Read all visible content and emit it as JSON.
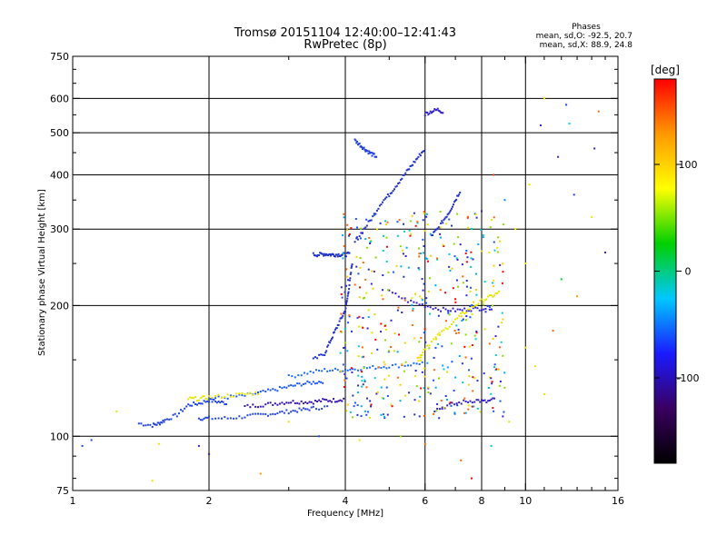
{
  "chart_data": {
    "type": "scatter",
    "title": "Tromsø 20151104 12:40:00–12:41:43",
    "subtitle": "RwPretec (8p)",
    "xlabel": "Frequency [MHz]",
    "ylabel": "Stationary phase Virtual Height [km]",
    "x_scale": "log",
    "y_scale": "log",
    "xlim": [
      1,
      16
    ],
    "ylim": [
      75,
      750
    ],
    "x_ticks": [
      1,
      2,
      4,
      6,
      8,
      10,
      16
    ],
    "y_ticks": [
      75,
      100,
      200,
      300,
      400,
      500,
      600,
      750
    ],
    "x_gridlines": [
      2,
      4,
      6,
      8,
      10
    ],
    "y_gridlines": [
      100,
      200,
      300,
      400,
      500,
      600
    ],
    "grid": true,
    "stats_header": "Phases",
    "stats_line_o": "mean, sd,O: -92.5, 20.7",
    "stats_line_x": "mean, sd,X:  88.9, 24.8",
    "colorbar": {
      "label": "[deg]",
      "range": [
        -180,
        180
      ],
      "ticks": [
        100,
        0,
        -100
      ],
      "colors": [
        "#000000",
        "#3a0060",
        "#1a1aff",
        "#00c8ff",
        "#00d000",
        "#ffff00",
        "#ff9900",
        "#ff0000"
      ]
    },
    "traces": [
      {
        "name": "",
        "phase": -100,
        "color": "#2244dd",
        "points": [
          [
            1.4,
            107
          ],
          [
            1.5,
            106
          ],
          [
            1.55,
            107
          ],
          [
            1.6,
            109
          ],
          [
            1.7,
            112
          ],
          [
            1.8,
            118
          ],
          [
            1.9,
            119
          ],
          [
            2.0,
            121
          ],
          [
            2.1,
            120
          ],
          [
            2.2,
            119
          ]
        ]
      },
      {
        "name": "",
        "phase": -95,
        "color": "#2244dd",
        "points": [
          [
            1.9,
            110
          ],
          [
            2.0,
            110
          ],
          [
            2.2,
            110
          ],
          [
            2.4,
            111
          ],
          [
            2.6,
            112
          ],
          [
            2.8,
            113
          ],
          [
            3.0,
            114
          ],
          [
            3.2,
            115
          ],
          [
            3.4,
            116
          ],
          [
            3.7,
            117
          ]
        ]
      },
      {
        "name": "",
        "phase": -110,
        "color": "#3311aa",
        "points": [
          [
            2.4,
            117
          ],
          [
            2.6,
            118
          ],
          [
            2.8,
            119
          ],
          [
            3.0,
            120
          ],
          [
            3.2,
            120
          ],
          [
            3.4,
            120
          ],
          [
            3.6,
            121
          ],
          [
            3.8,
            121
          ],
          [
            4.0,
            122
          ]
        ]
      },
      {
        "name": "",
        "phase": -95,
        "color": "#1a55ff",
        "points": [
          [
            2.0,
            122
          ],
          [
            2.2,
            123
          ],
          [
            2.4,
            124
          ],
          [
            2.6,
            126
          ],
          [
            2.8,
            128
          ],
          [
            3.0,
            130
          ],
          [
            3.2,
            132
          ],
          [
            3.4,
            133
          ],
          [
            3.6,
            134
          ]
        ]
      },
      {
        "name": "",
        "phase": -90,
        "color": "#1a66ff",
        "points": [
          [
            3.0,
            137
          ],
          [
            3.3,
            140
          ],
          [
            3.6,
            142
          ],
          [
            3.9,
            142
          ],
          [
            4.2,
            143
          ],
          [
            4.6,
            144
          ],
          [
            5.0,
            145
          ],
          [
            5.5,
            146
          ],
          [
            6.0,
            148
          ]
        ]
      },
      {
        "name": "",
        "phase": -100,
        "color": "#2233cc",
        "points": [
          [
            3.4,
            150
          ],
          [
            3.6,
            155
          ],
          [
            3.7,
            165
          ],
          [
            3.8,
            175
          ],
          [
            3.9,
            185
          ],
          [
            4.0,
            195
          ],
          [
            4.05,
            210
          ],
          [
            4.1,
            230
          ],
          [
            4.15,
            255
          ]
        ]
      },
      {
        "name": "",
        "phase": -105,
        "color": "#2233cc",
        "points": [
          [
            3.4,
            262
          ],
          [
            3.5,
            262
          ],
          [
            3.6,
            263
          ],
          [
            3.7,
            262
          ],
          [
            3.8,
            262
          ],
          [
            3.9,
            262
          ],
          [
            4.0,
            262
          ],
          [
            4.1,
            263
          ]
        ]
      },
      {
        "name": "",
        "phase": -100,
        "color": "#2233cc",
        "points": [
          [
            4.2,
            280
          ],
          [
            4.4,
            300
          ],
          [
            4.6,
            320
          ],
          [
            4.8,
            345
          ],
          [
            5.0,
            360
          ],
          [
            5.2,
            380
          ],
          [
            5.4,
            400
          ],
          [
            5.6,
            420
          ],
          [
            5.8,
            440
          ],
          [
            6.0,
            460
          ]
        ]
      },
      {
        "name": "",
        "phase": -95,
        "color": "#2244dd",
        "points": [
          [
            4.2,
            480
          ],
          [
            4.3,
            470
          ],
          [
            4.4,
            460
          ],
          [
            4.5,
            452
          ],
          [
            4.6,
            445
          ],
          [
            4.7,
            440
          ]
        ]
      },
      {
        "name": "",
        "phase": -100,
        "color": "#3322cc",
        "points": [
          [
            5.0,
            215
          ],
          [
            5.5,
            205
          ],
          [
            6.0,
            200
          ],
          [
            6.5,
            196
          ],
          [
            7.0,
            195
          ],
          [
            7.5,
            196
          ],
          [
            8.0,
            197
          ],
          [
            8.5,
            198
          ]
        ]
      },
      {
        "name": "",
        "phase": 100,
        "color": "#e6e600",
        "points": [
          [
            5.8,
            150
          ],
          [
            6.0,
            160
          ],
          [
            6.4,
            170
          ],
          [
            6.8,
            180
          ],
          [
            7.2,
            190
          ],
          [
            7.6,
            198
          ],
          [
            8.0,
            205
          ],
          [
            8.4,
            210
          ],
          [
            8.8,
            215
          ]
        ]
      },
      {
        "name": "",
        "phase": -100,
        "color": "#2233cc",
        "points": [
          [
            6.2,
            290
          ],
          [
            6.4,
            300
          ],
          [
            6.6,
            315
          ],
          [
            6.8,
            330
          ],
          [
            7.0,
            350
          ],
          [
            7.2,
            370
          ]
        ]
      },
      {
        "name": "",
        "phase": -110,
        "color": "#3322cc",
        "points": [
          [
            6.3,
            115
          ],
          [
            6.8,
            118
          ],
          [
            7.3,
            120
          ],
          [
            7.8,
            121
          ],
          [
            8.2,
            120
          ],
          [
            8.6,
            122
          ]
        ]
      },
      {
        "name": "",
        "phase": 95,
        "color": "#e6e600",
        "points": [
          [
            1.8,
            122
          ],
          [
            1.9,
            122
          ],
          [
            2.0,
            123
          ],
          [
            2.2,
            124
          ],
          [
            2.4,
            125
          ],
          [
            2.6,
            126
          ]
        ]
      },
      {
        "name": "",
        "phase": -100,
        "color": "#3322cc",
        "points": [
          [
            6.0,
            552
          ],
          [
            6.2,
            560
          ],
          [
            6.4,
            565
          ],
          [
            6.6,
            558
          ]
        ]
      }
    ],
    "scatter_points": [
      {
        "x": 1.05,
        "y": 95,
        "phase": -100,
        "color": "#2244dd"
      },
      {
        "x": 1.1,
        "y": 98,
        "phase": -95,
        "color": "#2244dd"
      },
      {
        "x": 1.25,
        "y": 114,
        "phase": 100,
        "color": "#e6e600"
      },
      {
        "x": 1.5,
        "y": 79,
        "phase": 100,
        "color": "#e6e600"
      },
      {
        "x": 1.55,
        "y": 96,
        "phase": 100,
        "color": "#e6e600"
      },
      {
        "x": 1.9,
        "y": 95,
        "phase": -110,
        "color": "#3322cc"
      },
      {
        "x": 2.0,
        "y": 91,
        "phase": -110,
        "color": "#3322cc"
      },
      {
        "x": 2.6,
        "y": 82,
        "phase": 130,
        "color": "#ff9900"
      },
      {
        "x": 3.0,
        "y": 108,
        "phase": 100,
        "color": "#e6e600"
      },
      {
        "x": 3.5,
        "y": 100,
        "phase": -100,
        "color": "#2244dd"
      },
      {
        "x": 4.3,
        "y": 98,
        "phase": 100,
        "color": "#e6e600"
      },
      {
        "x": 4.8,
        "y": 112,
        "phase": -80,
        "color": "#00aaff"
      },
      {
        "x": 5.3,
        "y": 100,
        "phase": 60,
        "color": "#88dd00"
      },
      {
        "x": 6.0,
        "y": 96,
        "phase": 140,
        "color": "#ff6600"
      },
      {
        "x": 7.2,
        "y": 88,
        "phase": 140,
        "color": "#ff6600"
      },
      {
        "x": 7.6,
        "y": 80,
        "phase": 160,
        "color": "#ff0000"
      },
      {
        "x": 8.4,
        "y": 95,
        "phase": -20,
        "color": "#00d0d0"
      },
      {
        "x": 9.2,
        "y": 108,
        "phase": 100,
        "color": "#e6e600"
      },
      {
        "x": 10.0,
        "y": 160,
        "phase": 100,
        "color": "#e6e600"
      },
      {
        "x": 10.5,
        "y": 145,
        "phase": 100,
        "color": "#e6e600"
      },
      {
        "x": 11.0,
        "y": 125,
        "phase": 100,
        "color": "#e6e600"
      },
      {
        "x": 11.0,
        "y": 600,
        "phase": 100,
        "color": "#e6e600"
      },
      {
        "x": 10.8,
        "y": 520,
        "phase": -110,
        "color": "#3322cc"
      },
      {
        "x": 12.5,
        "y": 525,
        "phase": -10,
        "color": "#00ccff"
      },
      {
        "x": 12.3,
        "y": 580,
        "phase": -95,
        "color": "#2244dd"
      },
      {
        "x": 14.5,
        "y": 560,
        "phase": 140,
        "color": "#ff6600"
      },
      {
        "x": 14.2,
        "y": 460,
        "phase": -110,
        "color": "#3322cc"
      },
      {
        "x": 14.0,
        "y": 320,
        "phase": 100,
        "color": "#e6e600"
      },
      {
        "x": 15.0,
        "y": 265,
        "phase": -110,
        "color": "#3322cc"
      },
      {
        "x": 12.0,
        "y": 230,
        "phase": 30,
        "color": "#00cc44"
      },
      {
        "x": 13.0,
        "y": 210,
        "phase": 120,
        "color": "#ff9900"
      },
      {
        "x": 11.5,
        "y": 175,
        "phase": 140,
        "color": "#ff6600"
      },
      {
        "x": 10.0,
        "y": 250,
        "phase": 100,
        "color": "#e6e600"
      },
      {
        "x": 9.5,
        "y": 300,
        "phase": 100,
        "color": "#e6e600"
      },
      {
        "x": 8.5,
        "y": 400,
        "phase": 150,
        "color": "#ff3300"
      },
      {
        "x": 8.0,
        "y": 330,
        "phase": -110,
        "color": "#3322cc"
      },
      {
        "x": 9.0,
        "y": 350,
        "phase": -60,
        "color": "#0088ff"
      },
      {
        "x": 10.2,
        "y": 380,
        "phase": 100,
        "color": "#e6e600"
      },
      {
        "x": 11.8,
        "y": 440,
        "phase": -110,
        "color": "#3322cc"
      },
      {
        "x": 12.8,
        "y": 360,
        "phase": -100,
        "color": "#2244dd"
      }
    ],
    "scatter_region_summary": [
      {
        "x_range": [
          3.9,
          9.0
        ],
        "y_range": [
          110,
          330
        ],
        "description_phase_mix": "mixed -180..180",
        "count": 480
      }
    ]
  }
}
